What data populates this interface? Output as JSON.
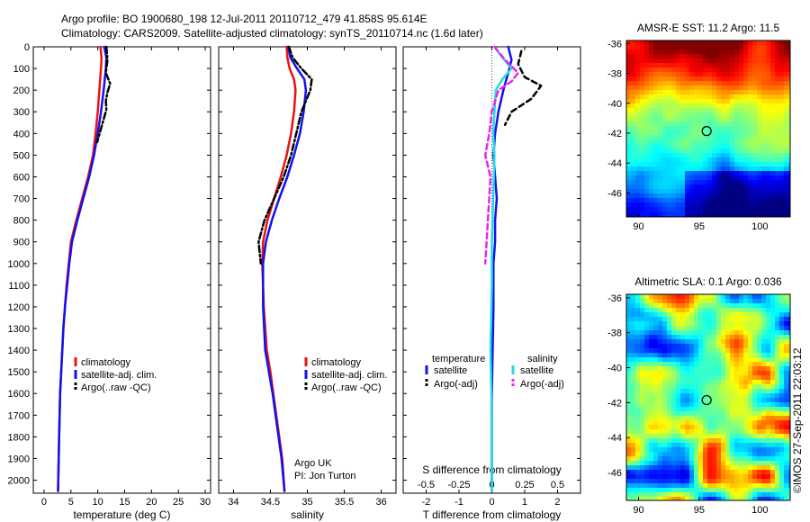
{
  "header": {
    "line1": "Argo profile: BO 1900680_198 12-Jul-2011 20110712_479 41.858S 95.614E",
    "line2": "Climatology: CARS2009. Satellite-adjusted climatology: synTS_20110714.nc (1.6d later)"
  },
  "credit": "©IMOS 27-Sep-2011 22:03:12",
  "colors": {
    "climatology": "#ee1111",
    "satellite": "#1111ee",
    "argo": "#000000",
    "salinity_satellite": "#22dddd",
    "salinity_argo": "#ee22ee"
  },
  "chart_data": [
    {
      "type": "line",
      "xlabel": "temperature (deg C)",
      "ylabel": "",
      "xlim": [
        -2,
        31
      ],
      "ylim": [
        2060,
        0
      ],
      "y_reversed": true,
      "x_ticks": [
        0,
        5,
        10,
        15,
        20,
        25,
        30
      ],
      "y_ticks": [
        0,
        100,
        200,
        300,
        400,
        500,
        600,
        700,
        800,
        900,
        1000,
        1100,
        1200,
        1300,
        1400,
        1500,
        1600,
        1700,
        1800,
        1900,
        2000
      ],
      "legend": [
        "climatology",
        "satellite-adj. clim.",
        "Argo(..raw -QC)"
      ],
      "legend_position": "bottom-center",
      "series": [
        {
          "name": "climatology",
          "color": "#ee1111",
          "style": "solid",
          "x": [
            10.5,
            10.7,
            10.6,
            10.3,
            10.0,
            9.6,
            9.1,
            8.2,
            7.1,
            6.0,
            5.0,
            4.6,
            4.2,
            3.9,
            3.6,
            3.4,
            3.2,
            3.0,
            2.8,
            2.6
          ],
          "y": [
            0,
            50,
            100,
            200,
            300,
            400,
            500,
            600,
            700,
            800,
            900,
            1000,
            1100,
            1200,
            1300,
            1400,
            1500,
            1600,
            1800,
            2050
          ]
        },
        {
          "name": "satellite-adj. clim.",
          "color": "#1111ee",
          "style": "solid",
          "x": [
            11.2,
            11.6,
            11.5,
            11.1,
            10.6,
            10.0,
            9.3,
            8.4,
            7.3,
            6.2,
            5.2,
            4.7,
            4.3,
            3.9,
            3.6,
            3.4,
            3.2,
            3.0,
            2.8,
            2.6
          ],
          "y": [
            0,
            50,
            100,
            200,
            300,
            400,
            500,
            600,
            700,
            800,
            900,
            1000,
            1100,
            1200,
            1300,
            1400,
            1500,
            1600,
            1800,
            2050
          ]
        },
        {
          "name": "Argo(..raw -QC)",
          "color": "#000000",
          "style": "dashdot",
          "x": [
            11.6,
            11.8,
            11.5,
            12.3,
            11.8,
            11.5,
            11.6,
            10.8,
            9.9
          ],
          "y": [
            0,
            60,
            120,
            170,
            210,
            250,
            290,
            360,
            440
          ]
        }
      ]
    },
    {
      "type": "line",
      "xlabel": "salinity",
      "ylabel": "",
      "xlim": [
        33.8,
        36.2
      ],
      "ylim": [
        2060,
        0
      ],
      "y_reversed": true,
      "x_ticks": [
        34,
        34.5,
        35,
        35.5,
        36
      ],
      "x_tick_labels": [
        "34",
        "34.5",
        "35",
        "35.5",
        "36"
      ],
      "legend": [
        "climatology",
        "satellite-adj. clim.",
        "Argo(..raw -QC)"
      ],
      "legend_position": "bottom-center",
      "annotations": [
        "Argo UK",
        "PI: Jon Turton"
      ],
      "series": [
        {
          "name": "climatology",
          "color": "#ee1111",
          "style": "solid",
          "x": [
            34.72,
            34.73,
            34.76,
            34.82,
            34.84,
            34.82,
            34.78,
            34.72,
            34.64,
            34.55,
            34.46,
            34.4,
            34.39,
            34.41,
            34.45,
            34.5,
            34.54,
            34.58,
            34.62,
            34.66,
            34.69
          ],
          "y": [
            0,
            50,
            100,
            150,
            200,
            300,
            400,
            500,
            600,
            700,
            800,
            900,
            1000,
            1200,
            1400,
            1500,
            1600,
            1700,
            1800,
            1900,
            2050
          ]
        },
        {
          "name": "satellite-adj. clim.",
          "color": "#1111ee",
          "style": "solid",
          "x": [
            34.74,
            34.77,
            34.86,
            34.96,
            34.98,
            34.95,
            34.9,
            34.82,
            34.73,
            34.62,
            34.52,
            34.44,
            34.4,
            34.4,
            34.43,
            34.48,
            34.53,
            34.57,
            34.61,
            34.65,
            34.69
          ],
          "y": [
            0,
            50,
            100,
            150,
            200,
            300,
            400,
            500,
            600,
            700,
            800,
            900,
            1000,
            1200,
            1400,
            1500,
            1600,
            1700,
            1800,
            1900,
            2050
          ]
        },
        {
          "name": "Argo(..raw -QC)",
          "color": "#000000",
          "style": "dashdot",
          "x": [
            34.75,
            34.8,
            34.92,
            35.06,
            35.04,
            34.98,
            34.92,
            34.85,
            34.78,
            34.68,
            34.55,
            34.42,
            34.34,
            34.37
          ],
          "y": [
            0,
            50,
            100,
            150,
            200,
            250,
            300,
            400,
            500,
            600,
            700,
            800,
            900,
            1000
          ]
        }
      ]
    },
    {
      "type": "line",
      "xlabel": "T difference from climatology",
      "secondary_xlabel": "S difference from climatology",
      "xlim": [
        -2.7,
        2.7
      ],
      "ylim": [
        2060,
        0
      ],
      "y_reversed": true,
      "x_ticks": [
        -2,
        -1,
        0,
        1,
        2
      ],
      "x_tick_labels": [
        "-2",
        "-1",
        "0",
        "1",
        "2"
      ],
      "secondary_x_ticks": [
        -0.5,
        -0.25,
        0,
        0.25,
        0.5
      ],
      "secondary_x_tick_labels": [
        "-0.5",
        "-0.25",
        "0",
        "0.25",
        "0.5"
      ],
      "legend_groups": [
        {
          "title": "temperature",
          "entries": [
            "satellite",
            "Argo(-adj)"
          ]
        },
        {
          "title": "salinity",
          "entries": [
            "satellite",
            "Argo(-adj)"
          ]
        }
      ],
      "legend_position": "bottom-center",
      "series": [
        {
          "name": "temperature satellite",
          "color": "#1111ee",
          "style": "solid",
          "x": [
            0.5,
            0.6,
            0.5,
            0.35,
            0.2,
            0.1,
            0.05,
            0.1,
            0.15,
            0.1,
            0.1,
            0.05,
            0.05,
            0.0,
            0.0
          ],
          "y": [
            0,
            60,
            120,
            200,
            300,
            400,
            500,
            600,
            700,
            800,
            900,
            1000,
            1200,
            1600,
            2050
          ]
        },
        {
          "name": "temperature Argo(-adj)",
          "color": "#000000",
          "style": "dashed",
          "x": [
            0.9,
            0.8,
            1.0,
            1.5,
            1.2,
            0.6,
            0.4
          ],
          "y": [
            20,
            80,
            140,
            180,
            240,
            300,
            360
          ]
        },
        {
          "name": "salinity satellite",
          "color": "#22dddd",
          "style": "solid",
          "x": [
            0.02,
            0.08,
            0.15,
            0.08,
            0.03,
            0.02,
            0.01,
            0.02,
            0.01,
            0.0,
            0.0,
            -0.01,
            0.0,
            0.0
          ],
          "y": [
            0,
            50,
            100,
            150,
            200,
            300,
            400,
            500,
            700,
            900,
            1100,
            1400,
            1700,
            2050
          ]
        },
        {
          "name": "salinity Argo(-adj)",
          "color": "#ee22ee",
          "style": "dashed",
          "x": [
            0.02,
            0.1,
            0.2,
            0.15,
            0.05,
            0.0,
            -0.02,
            -0.05,
            -0.01,
            -0.03,
            -0.05
          ],
          "y": [
            0,
            60,
            120,
            160,
            200,
            300,
            400,
            500,
            600,
            800,
            1000
          ]
        }
      ]
    },
    {
      "type": "heatmap",
      "title": "AMSR-E SST: 11.2 Argo: 11.5",
      "xlim": [
        89,
        102.5
      ],
      "ylim": [
        -47.6,
        -35.8
      ],
      "x_ticks": [
        90,
        95,
        100
      ],
      "y_ticks": [
        -36,
        -38,
        -40,
        -42,
        -44,
        -46
      ],
      "marker": {
        "x": 95.614,
        "y": -41.858
      }
    },
    {
      "type": "heatmap",
      "title": "Altimetric SLA: 0.1 Argo: 0.036",
      "xlim": [
        89,
        102.5
      ],
      "ylim": [
        -47.6,
        -35.8
      ],
      "x_ticks": [
        90,
        95,
        100
      ],
      "y_ticks": [
        -36,
        -38,
        -40,
        -42,
        -44,
        -46
      ],
      "marker": {
        "x": 95.614,
        "y": -41.858
      }
    }
  ]
}
